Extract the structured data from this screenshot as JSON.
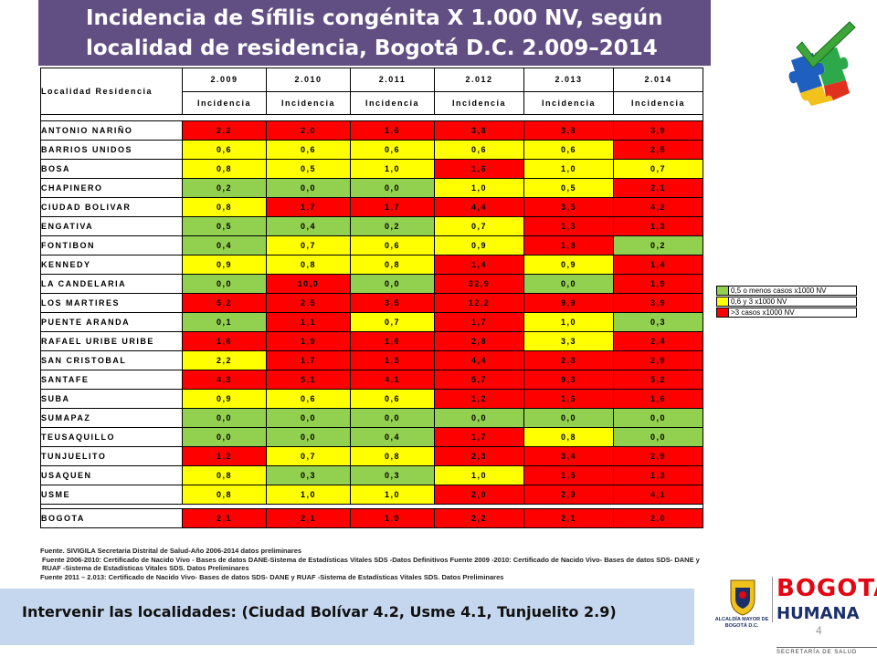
{
  "title": {
    "line1": "Incidencia de Sífilis congénita X 1.000 NV, según",
    "line2": "localidad de residencia, Bogotá D.C. 2.009–2014"
  },
  "table": {
    "header_locality": "Localidad Residencia",
    "years": [
      "2.009",
      "2.010",
      "2.011",
      "2.012",
      "2.013",
      "2.014"
    ],
    "subheader": "Incidencia",
    "rows": [
      {
        "name": "ANTONIO NARIÑO",
        "values": [
          "2,2",
          "2,0",
          "1,6",
          "3,8",
          "3,8",
          "3,9"
        ],
        "colors": [
          "r",
          "r",
          "r",
          "r",
          "r",
          "r"
        ]
      },
      {
        "name": "BARRIOS UNIDOS",
        "values": [
          "0,6",
          "0,6",
          "0,6",
          "0,6",
          "0,6",
          "2,5"
        ],
        "colors": [
          "y",
          "y",
          "y",
          "y",
          "y",
          "r"
        ]
      },
      {
        "name": "BOSA",
        "values": [
          "0,8",
          "0,5",
          "1,0",
          "1,6",
          "1,0",
          "0,7"
        ],
        "colors": [
          "y",
          "y",
          "y",
          "r",
          "y",
          "y"
        ]
      },
      {
        "name": "CHAPINERO",
        "values": [
          "0,2",
          "0,0",
          "0,0",
          "1,0",
          "0,5",
          "2,1"
        ],
        "colors": [
          "g",
          "g",
          "g",
          "y",
          "y",
          "r"
        ]
      },
      {
        "name": "CIUDAD BOLIVAR",
        "values": [
          "0,8",
          "1,7",
          "1,7",
          "4,4",
          "3,5",
          "4,2"
        ],
        "colors": [
          "y",
          "r",
          "r",
          "r",
          "r",
          "r"
        ]
      },
      {
        "name": "ENGATIVA",
        "values": [
          "0,5",
          "0,4",
          "0,2",
          "0,7",
          "1,3",
          "1,3"
        ],
        "colors": [
          "g",
          "g",
          "g",
          "y",
          "r",
          "r"
        ]
      },
      {
        "name": "FONTIBON",
        "values": [
          "0,4",
          "0,7",
          "0,6",
          "0,9",
          "1,8",
          "0,2"
        ],
        "colors": [
          "g",
          "y",
          "y",
          "y",
          "r",
          "g"
        ]
      },
      {
        "name": "KENNEDY",
        "values": [
          "0,9",
          "0,8",
          "0,8",
          "1,4",
          "0,9",
          "1,4"
        ],
        "colors": [
          "y",
          "y",
          "y",
          "r",
          "y",
          "r"
        ]
      },
      {
        "name": "LA CANDELARIA",
        "values": [
          "0,0",
          "10,0",
          "0,0",
          "32,9",
          "0,0",
          "1,9"
        ],
        "colors": [
          "g",
          "r",
          "g",
          "r",
          "g",
          "r"
        ]
      },
      {
        "name": "LOS MARTIRES",
        "values": [
          "5,2",
          "2,5",
          "3,5",
          "12,2",
          "9,9",
          "3,9"
        ],
        "colors": [
          "r",
          "r",
          "r",
          "r",
          "r",
          "r"
        ]
      },
      {
        "name": "PUENTE ARANDA",
        "values": [
          "0,1",
          "1,1",
          "0,7",
          "1,7",
          "1,0",
          "0,3"
        ],
        "colors": [
          "g",
          "r",
          "y",
          "r",
          "y",
          "g"
        ]
      },
      {
        "name": "RAFAEL URIBE URIBE",
        "values": [
          "1,6",
          "1,9",
          "1,6",
          "2,8",
          "3,3",
          "2,4"
        ],
        "colors": [
          "r",
          "r",
          "r",
          "r",
          "y",
          "r"
        ]
      },
      {
        "name": "SAN CRISTOBAL",
        "values": [
          "2,2",
          "1,7",
          "1,5",
          "4,4",
          "2,8",
          "2,9"
        ],
        "colors": [
          "y",
          "r",
          "r",
          "r",
          "r",
          "r"
        ]
      },
      {
        "name": "SANTAFE",
        "values": [
          "4,3",
          "5,1",
          "4,1",
          "5,7",
          "9,3",
          "5,2"
        ],
        "colors": [
          "r",
          "r",
          "r",
          "r",
          "r",
          "r"
        ]
      },
      {
        "name": "SUBA",
        "values": [
          "0,9",
          "0,6",
          "0,6",
          "1,2",
          "1,6",
          "1,6"
        ],
        "colors": [
          "y",
          "y",
          "y",
          "r",
          "r",
          "r"
        ]
      },
      {
        "name": "SUMAPAZ",
        "values": [
          "0,0",
          "0,0",
          "0,0",
          "0,0",
          "0,0",
          "0,0"
        ],
        "colors": [
          "g",
          "g",
          "g",
          "g",
          "g",
          "g"
        ]
      },
      {
        "name": "TEUSAQUILLO",
        "values": [
          "0,0",
          "0,0",
          "0,4",
          "1,7",
          "0,8",
          "0,0"
        ],
        "colors": [
          "g",
          "g",
          "g",
          "r",
          "y",
          "g"
        ]
      },
      {
        "name": "TUNJUELITO",
        "values": [
          "1,2",
          "0,7",
          "0,8",
          "2,3",
          "3,4",
          "2,9"
        ],
        "colors": [
          "r",
          "y",
          "y",
          "r",
          "r",
          "r"
        ]
      },
      {
        "name": "USAQUEN",
        "values": [
          "0,8",
          "0,3",
          "0,3",
          "1,0",
          "1,5",
          "1,3"
        ],
        "colors": [
          "y",
          "g",
          "g",
          "y",
          "r",
          "r"
        ]
      },
      {
        "name": "USME",
        "values": [
          "0,8",
          "1,0",
          "1,0",
          "2,0",
          "2,9",
          "4,1"
        ],
        "colors": [
          "y",
          "y",
          "y",
          "r",
          "r",
          "r"
        ]
      },
      {
        "name": "BOGOTA",
        "values": [
          "2,1",
          "2,1",
          "1,9",
          "2,2",
          "2,1",
          "2,0"
        ],
        "colors": [
          "r",
          "r",
          "r",
          "r",
          "r",
          "r"
        ]
      }
    ]
  },
  "legend": [
    {
      "color": "#92d050",
      "label": "0,5 o menos casos x1000 NV"
    },
    {
      "color": "#ffff00",
      "label": "0,6 y 3 x1000 NV"
    },
    {
      "color": "#ff0000",
      "label": ">3 casos x1000 NV"
    }
  ],
  "colors": {
    "g": "#92d050",
    "y": "#ffff00",
    "r": "#ff0000",
    "title_bg": "#614f83",
    "banner_bg": "#c5d7ee"
  },
  "sources": [
    "Fuente. SIVIGILA Secretaria Distrital de Salud-Año 2006-2014 datos preliminares",
    "Fuente 2006-2010: Certificado de Nacido Vivo - Bases de datos DANE-Sistema de Estadísticas Vitales SDS -Datos Definitivos  Fuente 2009 -2010: Certificado de Nacido Vivo- Bases de datos SDS- DANE y RUAF -Sistema de Estadísticas Vitales SDS. Datos Preliminares",
    "Fuente 2011 – 2.013: Certificado de Nacido Vivo- Bases de datos SDS- DANE y RUAF -Sistema de Estadísticas Vitales SDS. Datos Preliminares"
  ],
  "banner": "Intervenir las localidades: (Ciudad Bolívar 4.2, Usme 4.1,  Tunjuelito 2.9)",
  "page_number": "4",
  "logos": {
    "alcaldia": "ALCALDÍA MAYOR DE BOGOTÁ D.C.",
    "bogota": "BOGOTÁ",
    "humana": "HUMANA",
    "secretaria": "SECRETARÍA DE SALUD",
    "puzzle_icon": "puzzle-checkmark-icon"
  }
}
